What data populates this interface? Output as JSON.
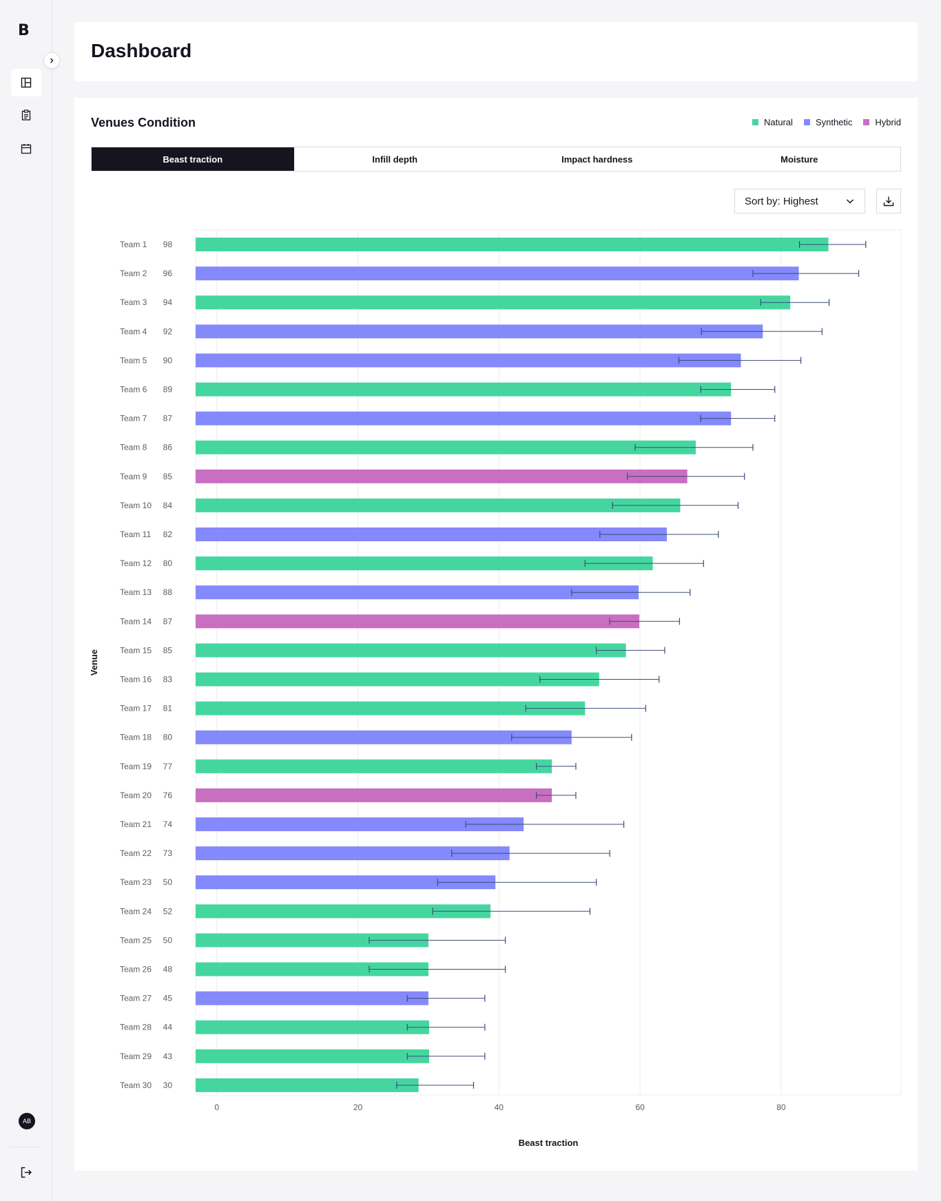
{
  "sidebar": {
    "logo": "B",
    "avatar_initials": "AB",
    "nav": [
      {
        "icon": "layout-icon",
        "active": true
      },
      {
        "icon": "clipboard-icon",
        "active": false
      },
      {
        "icon": "calendar-icon",
        "active": false
      }
    ]
  },
  "header": {
    "title": "Dashboard"
  },
  "card": {
    "title": "Venues Condition",
    "legend": [
      {
        "label": "Natural",
        "color": "#45d6a0"
      },
      {
        "label": "Synthetic",
        "color": "#8489fb"
      },
      {
        "label": "Hybrid",
        "color": "#c86fc1"
      }
    ],
    "tabs": [
      {
        "label": "Beast traction",
        "active": true
      },
      {
        "label": "Infill depth",
        "active": false
      },
      {
        "label": "Impact hardness",
        "active": false
      },
      {
        "label": "Moisture",
        "active": false
      }
    ],
    "sort_label": "Sort by: Highest"
  },
  "chart_data": {
    "type": "bar",
    "orientation": "horizontal",
    "xlabel": "Beast traction",
    "ylabel": "Venue",
    "xlim": [
      -3,
      97
    ],
    "xticks": [
      0,
      20,
      40,
      60,
      80
    ],
    "grid": true,
    "categories": [
      "Team 1",
      "Team 2",
      "Team 3",
      "Team 4",
      "Team 5",
      "Team 6",
      "Team 7",
      "Team 8",
      "Team 9",
      "Team 10",
      "Team 11",
      "Team 12",
      "Team 13",
      "Team 14",
      "Team 15",
      "Team 16",
      "Team 17",
      "Team 18",
      "Team 19",
      "Team 20",
      "Team 21",
      "Team 22",
      "Team 23",
      "Team 24",
      "Team 25",
      "Team 26",
      "Team 27",
      "Team 28",
      "Team 29",
      "Team 30"
    ],
    "scores": [
      98,
      96,
      94,
      92,
      90,
      89,
      87,
      86,
      85,
      84,
      82,
      80,
      88,
      87,
      85,
      83,
      81,
      80,
      77,
      76,
      74,
      73,
      50,
      52,
      50,
      48,
      45,
      44,
      43,
      30
    ],
    "surface": [
      "Natural",
      "Synthetic",
      "Natural",
      "Synthetic",
      "Synthetic",
      "Natural",
      "Synthetic",
      "Natural",
      "Hybrid",
      "Natural",
      "Synthetic",
      "Natural",
      "Synthetic",
      "Hybrid",
      "Natural",
      "Natural",
      "Natural",
      "Synthetic",
      "Natural",
      "Hybrid",
      "Synthetic",
      "Synthetic",
      "Synthetic",
      "Natural",
      "Natural",
      "Natural",
      "Synthetic",
      "Natural",
      "Natural",
      "Natural"
    ],
    "values": [
      86.7,
      82.5,
      81.3,
      77.4,
      74.3,
      72.9,
      72.9,
      67.9,
      66.7,
      65.7,
      63.8,
      61.8,
      59.8,
      59.9,
      58.0,
      54.2,
      52.2,
      50.3,
      47.5,
      47.5,
      43.5,
      41.5,
      39.5,
      38.8,
      30.0,
      30.0,
      30.0,
      30.1,
      30.1,
      28.6
    ],
    "error_low": [
      82.6,
      76.0,
      77.1,
      68.7,
      65.5,
      68.6,
      68.6,
      59.3,
      58.2,
      56.1,
      54.3,
      52.2,
      50.3,
      55.7,
      53.8,
      45.8,
      43.8,
      41.8,
      45.3,
      45.3,
      35.3,
      33.3,
      31.3,
      30.6,
      21.6,
      21.6,
      27.0,
      27.0,
      27.0,
      25.5
    ],
    "error_high": [
      92.0,
      91.0,
      86.8,
      85.8,
      82.8,
      79.1,
      79.1,
      76.0,
      74.8,
      73.9,
      71.1,
      69.0,
      67.1,
      65.6,
      63.5,
      62.7,
      60.8,
      58.8,
      50.9,
      50.9,
      57.7,
      55.7,
      53.8,
      52.9,
      40.9,
      40.9,
      38.0,
      38.0,
      38.0,
      36.4
    ]
  }
}
